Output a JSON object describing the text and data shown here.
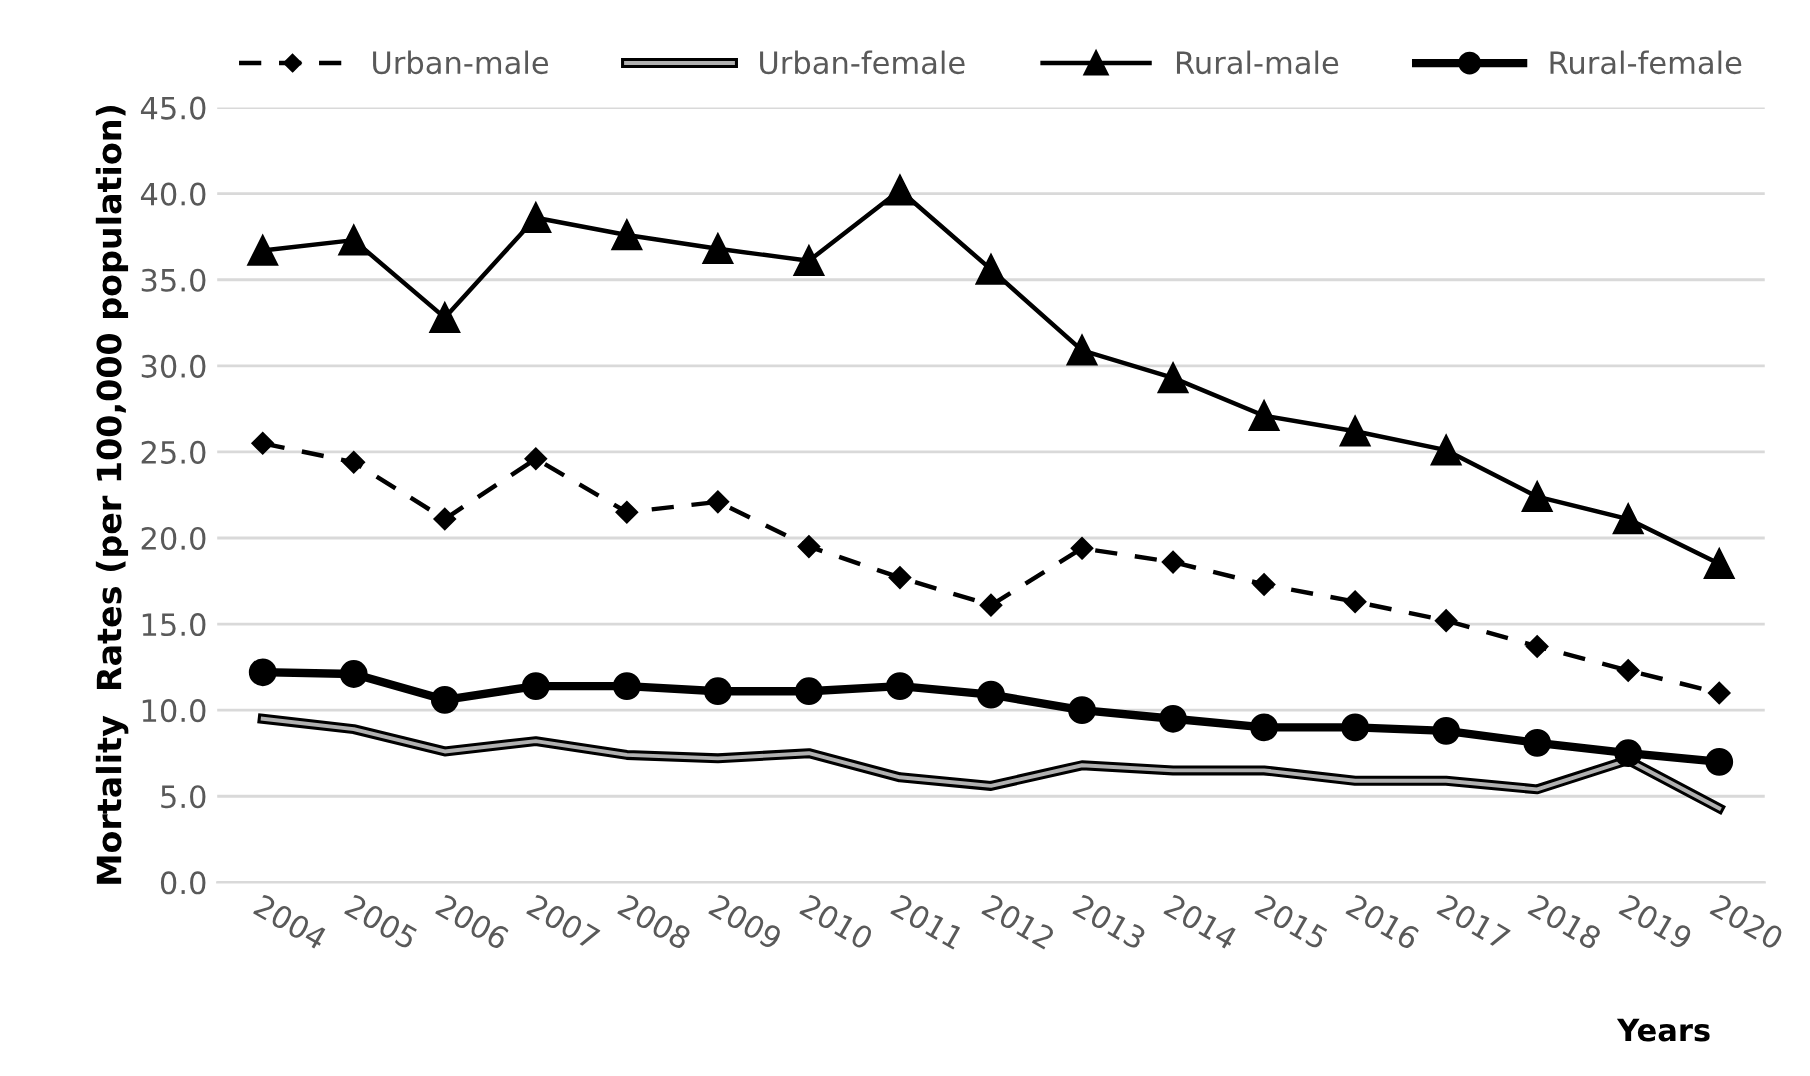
{
  "chart_data": {
    "type": "line",
    "xlabel": "Years",
    "ylabel": "Mortality  Rates (per 100,000 population)",
    "categories": [
      "2004",
      "2005",
      "2006",
      "2007",
      "2008",
      "2009",
      "2010",
      "2011",
      "2012",
      "2013",
      "2014",
      "2015",
      "2016",
      "2017",
      "2018",
      "2019",
      "2020"
    ],
    "series": [
      {
        "name": "Urban-male",
        "color": "#000000",
        "marker": "diamond",
        "line_style": "dashed",
        "values": [
          25.5,
          24.4,
          21.1,
          24.6,
          21.5,
          22.1,
          19.5,
          17.7,
          16.1,
          19.4,
          18.6,
          17.3,
          16.3,
          15.2,
          13.7,
          12.3,
          11.0
        ]
      },
      {
        "name": "Urban-female",
        "color": "#000000",
        "marker": "none",
        "line_style": "solid",
        "values": [
          9.5,
          8.9,
          7.6,
          8.2,
          7.4,
          7.2,
          7.5,
          6.1,
          5.6,
          6.8,
          6.5,
          6.5,
          5.9,
          5.9,
          5.4,
          7.1,
          4.3
        ]
      },
      {
        "name": "Rural-male",
        "color": "#000000",
        "marker": "triangle",
        "line_style": "solid",
        "values": [
          36.7,
          37.3,
          32.8,
          38.6,
          37.6,
          36.8,
          36.1,
          40.2,
          35.6,
          30.9,
          29.3,
          27.1,
          26.2,
          25.1,
          22.4,
          21.1,
          18.5
        ]
      },
      {
        "name": "Rural-female",
        "color": "#000000",
        "marker": "circle",
        "line_style": "solid",
        "values": [
          12.2,
          12.1,
          10.6,
          11.4,
          11.4,
          11.1,
          11.1,
          11.4,
          10.9,
          10.0,
          9.5,
          9.0,
          9.0,
          8.8,
          8.1,
          7.5,
          7.0
        ]
      }
    ],
    "ylim": [
      0,
      45
    ],
    "yticks": [
      {
        "value": 0,
        "label": "0.0"
      },
      {
        "value": 5,
        "label": "5.0"
      },
      {
        "value": 10,
        "label": "10.0"
      },
      {
        "value": 15,
        "label": "15.0"
      },
      {
        "value": 20,
        "label": "20.0"
      },
      {
        "value": 25,
        "label": "25.0"
      },
      {
        "value": 30,
        "label": "30.0"
      },
      {
        "value": 35,
        "label": "35.0"
      },
      {
        "value": 40,
        "label": "40.0"
      },
      {
        "value": 45,
        "label": "45.0"
      }
    ],
    "grid": "y",
    "legend": "top"
  }
}
